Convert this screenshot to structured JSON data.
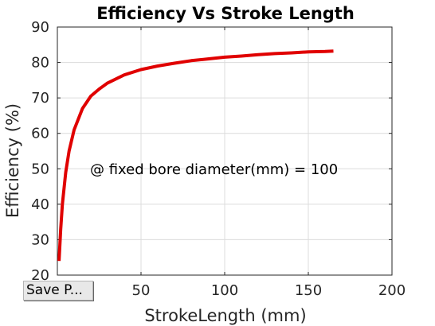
{
  "chart_data": {
    "type": "line",
    "title": "Efficiency Vs Stroke Length",
    "xlabel": "StrokeLength (mm)",
    "ylabel": "Efficiency (%)",
    "xlim": [
      0,
      200
    ],
    "ylim": [
      20,
      90
    ],
    "xticks": [
      0,
      50,
      100,
      150,
      200
    ],
    "yticks": [
      20,
      30,
      40,
      50,
      60,
      70,
      80,
      90
    ],
    "xtick_labels": [
      "0",
      "50",
      "100",
      "150",
      "200"
    ],
    "ytick_labels": [
      "20",
      "30",
      "40",
      "50",
      "60",
      "70",
      "80",
      "90"
    ],
    "grid": true,
    "annotation": "@ fixed bore diameter(mm) =  100",
    "series": [
      {
        "color": "#e00000",
        "points": [
          [
            1,
            24
          ],
          [
            2,
            33
          ],
          [
            3,
            40
          ],
          [
            5,
            49
          ],
          [
            7,
            55
          ],
          [
            10,
            61
          ],
          [
            15,
            67
          ],
          [
            20,
            70.5
          ],
          [
            25,
            72.5
          ],
          [
            30,
            74.2
          ],
          [
            40,
            76.5
          ],
          [
            50,
            78
          ],
          [
            60,
            79
          ],
          [
            70,
            79.8
          ],
          [
            80,
            80.5
          ],
          [
            90,
            81
          ],
          [
            100,
            81.5
          ],
          [
            110,
            81.8
          ],
          [
            120,
            82.2
          ],
          [
            130,
            82.5
          ],
          [
            140,
            82.7
          ],
          [
            150,
            83
          ],
          [
            160,
            83.1
          ],
          [
            165,
            83.2
          ]
        ]
      }
    ]
  },
  "toolbar": {
    "save_label": "Save P..."
  }
}
